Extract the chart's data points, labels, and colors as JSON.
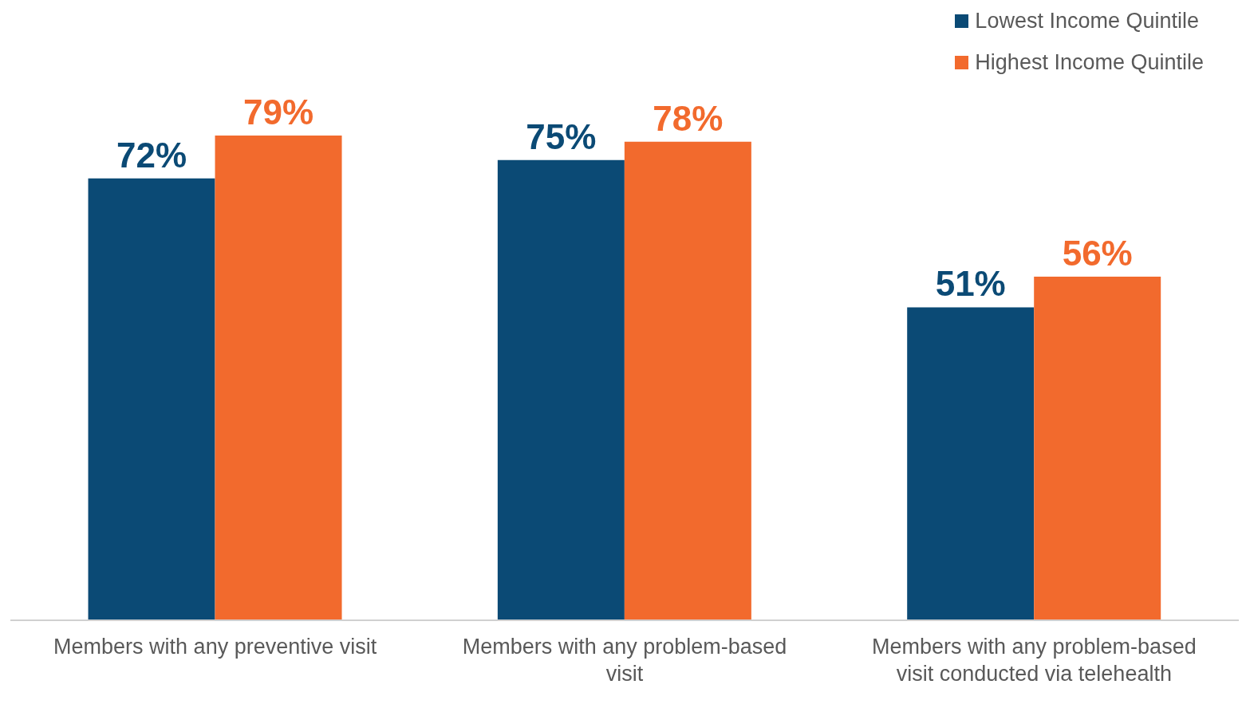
{
  "chart_data": {
    "type": "bar",
    "categories": [
      "Members with any preventive visit",
      "Members with any problem-based visit",
      "Members with any problem-based visit conducted via telehealth"
    ],
    "series": [
      {
        "name": "Lowest Income Quintile",
        "color": "#0b4a75",
        "values": [
          72,
          75,
          51
        ],
        "value_labels": [
          "72%",
          "75%",
          "51%"
        ]
      },
      {
        "name": "Highest Income Quintile",
        "color": "#f26a2d",
        "values": [
          79,
          78,
          56
        ],
        "value_labels": [
          "79%",
          "78%",
          "56%"
        ]
      }
    ],
    "legend": "top right",
    "grid": false
  }
}
